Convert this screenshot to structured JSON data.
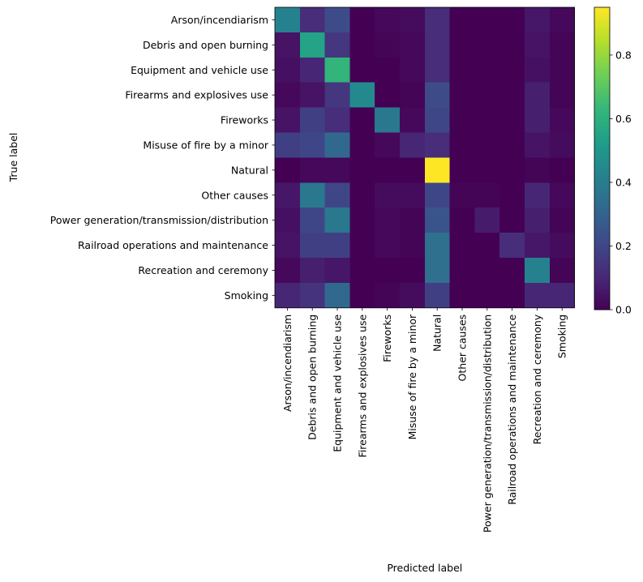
{
  "chart_data": {
    "type": "heatmap",
    "title": "",
    "xlabel": "Predicted label",
    "ylabel": "True label",
    "categories": [
      "Arson/incendiarism",
      "Debris and open burning",
      "Equipment and vehicle use",
      "Firearms and explosives use",
      "Fireworks",
      "Misuse of fire by a minor",
      "Natural",
      "Other causes",
      "Power generation/transmission/distribution",
      "Railroad operations and maintenance",
      "Recreation and ceremony",
      "Smoking"
    ],
    "values": [
      [
        0.42,
        0.12,
        0.22,
        0.0,
        0.02,
        0.03,
        0.12,
        0.0,
        0.0,
        0.0,
        0.06,
        0.02
      ],
      [
        0.05,
        0.55,
        0.15,
        0.0,
        0.01,
        0.02,
        0.12,
        0.0,
        0.0,
        0.0,
        0.05,
        0.01
      ],
      [
        0.04,
        0.1,
        0.62,
        0.0,
        0.0,
        0.02,
        0.12,
        0.0,
        0.0,
        0.0,
        0.04,
        0.01
      ],
      [
        0.02,
        0.05,
        0.15,
        0.45,
        0.0,
        0.01,
        0.22,
        0.0,
        0.0,
        0.0,
        0.08,
        0.01
      ],
      [
        0.05,
        0.18,
        0.12,
        0.0,
        0.38,
        0.02,
        0.2,
        0.0,
        0.0,
        0.0,
        0.08,
        0.02
      ],
      [
        0.18,
        0.2,
        0.32,
        0.0,
        0.02,
        0.1,
        0.12,
        0.0,
        0.0,
        0.0,
        0.05,
        0.03
      ],
      [
        0.0,
        0.02,
        0.02,
        0.0,
        0.0,
        0.0,
        0.96,
        0.0,
        0.0,
        0.0,
        0.01,
        0.0
      ],
      [
        0.06,
        0.38,
        0.2,
        0.0,
        0.03,
        0.03,
        0.2,
        0.01,
        0.01,
        0.0,
        0.1,
        0.02
      ],
      [
        0.04,
        0.2,
        0.38,
        0.0,
        0.02,
        0.01,
        0.25,
        0.0,
        0.07,
        0.0,
        0.08,
        0.01
      ],
      [
        0.05,
        0.18,
        0.18,
        0.0,
        0.02,
        0.01,
        0.35,
        0.0,
        0.0,
        0.12,
        0.06,
        0.03
      ],
      [
        0.02,
        0.08,
        0.06,
        0.0,
        0.0,
        0.0,
        0.35,
        0.0,
        0.0,
        0.0,
        0.42,
        0.01
      ],
      [
        0.1,
        0.14,
        0.32,
        0.0,
        0.01,
        0.03,
        0.18,
        0.0,
        0.0,
        0.0,
        0.1,
        0.1
      ]
    ],
    "colorbar": {
      "range": [
        0.0,
        0.95
      ],
      "ticks": [
        0.0,
        0.2,
        0.4,
        0.6,
        0.8
      ],
      "tick_labels": [
        "0.0",
        "0.2",
        "0.4",
        "0.6",
        "0.8"
      ],
      "colormap": "viridis"
    },
    "grid": false
  }
}
